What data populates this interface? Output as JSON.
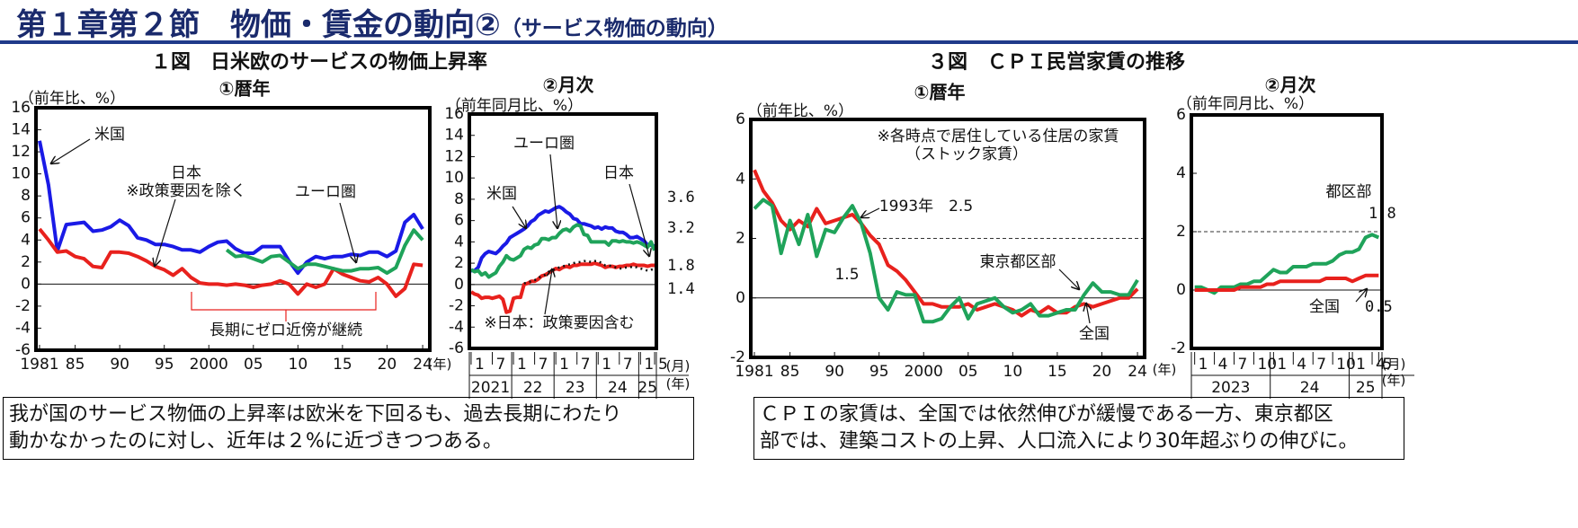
{
  "header": {
    "title": "第１章第２節　物価・賃金の動向②",
    "subtitle": "（サービス物価の動向）"
  },
  "figure_titles": [
    "１図　日米欧のサービスの物価上昇率",
    "３図　ＣＰＩ民営家賃の推移"
  ],
  "notes": [
    [
      "我が国のサービス物価の上昇率は欧米を下回るも、過去長期にわたり",
      "動かなかったのに対し、近年は２%に近づきつつある。"
    ],
    [
      "ＣＰＩの家賃は、全国では依然伸びが緩慢である一方、東京都区",
      "部では、建築コストの上昇、人口流入により30年超ぶりの伸びに。"
    ]
  ],
  "chart_data": [
    {
      "type": "line",
      "title": "①暦年",
      "y_label": "（前年比、%）",
      "x_unit": "(年)",
      "x": [
        1981,
        1982,
        1983,
        1984,
        1985,
        1986,
        1987,
        1988,
        1989,
        1990,
        1991,
        1992,
        1993,
        1994,
        1995,
        1996,
        1997,
        1998,
        1999,
        2000,
        2001,
        2002,
        2003,
        2004,
        2005,
        2006,
        2007,
        2008,
        2009,
        2010,
        2011,
        2012,
        2013,
        2014,
        2015,
        2016,
        2017,
        2018,
        2019,
        2020,
        2021,
        2022,
        2023,
        2024
      ],
      "xlim": [
        1980.6,
        2024.8
      ],
      "xticks": [
        1981,
        {
          "value": 1985,
          "label": "85"
        },
        {
          "value": 1990,
          "label": "90"
        },
        {
          "value": 1995,
          "label": "95"
        },
        2000,
        {
          "value": 2005,
          "label": "05"
        },
        {
          "value": 2010,
          "label": "10"
        },
        {
          "value": 2015,
          "label": "15"
        },
        {
          "value": 2020,
          "label": "20"
        },
        {
          "value": 2024,
          "label": "24"
        }
      ],
      "ylim": [
        -6,
        16
      ],
      "yticks": [
        -6,
        -4,
        -2,
        0,
        2,
        4,
        6,
        8,
        10,
        12,
        14,
        16
      ],
      "series": [
        {
          "name": "米国",
          "color": "#1a1ae6",
          "values": [
            13.0,
            9.0,
            3.0,
            5.4,
            5.5,
            5.6,
            4.8,
            4.9,
            5.2,
            5.8,
            5.3,
            4.2,
            4.0,
            3.6,
            3.6,
            3.4,
            3.1,
            3.1,
            2.9,
            3.4,
            3.8,
            3.9,
            3.2,
            2.8,
            2.8,
            3.4,
            3.4,
            3.4,
            2.1,
            1.0,
            2.0,
            2.5,
            2.3,
            2.5,
            2.5,
            2.7,
            2.6,
            2.9,
            2.9,
            2.5,
            3.0,
            5.6,
            6.3,
            5.0
          ]
        },
        {
          "name": "日本",
          "color": "#e8211d",
          "values": [
            5.0,
            4.0,
            2.9,
            3.0,
            2.5,
            2.3,
            1.6,
            1.5,
            2.9,
            2.9,
            2.8,
            2.5,
            2.1,
            1.6,
            1.3,
            0.8,
            1.4,
            0.6,
            0.1,
            0.0,
            0.0,
            -0.1,
            0.0,
            -0.1,
            -0.3,
            -0.1,
            0.0,
            0.3,
            0.0,
            -0.9,
            0.0,
            -0.3,
            0.0,
            1.4,
            0.9,
            0.6,
            0.3,
            0.2,
            0.6,
            0.0,
            -1.1,
            -0.4,
            1.8,
            1.7
          ]
        },
        {
          "name": "ユーロ圏",
          "color": "#1fa35a",
          "values": [
            null,
            null,
            null,
            null,
            null,
            null,
            null,
            null,
            null,
            null,
            null,
            null,
            null,
            null,
            null,
            null,
            null,
            null,
            null,
            null,
            null,
            3.1,
            2.5,
            2.6,
            2.3,
            2.0,
            2.5,
            2.6,
            2.0,
            1.4,
            1.8,
            1.8,
            1.6,
            1.4,
            1.2,
            1.2,
            1.4,
            1.4,
            1.5,
            1.0,
            1.5,
            3.5,
            4.9,
            4.0
          ]
        }
      ],
      "annotations": [
        {
          "text": "※政策要因を除く",
          "color": "#e8211d"
        },
        {
          "text": "長期にゼロ近傍が継続",
          "color": "#e8211d"
        }
      ]
    },
    {
      "type": "line",
      "title": "②月次",
      "y_label": "（前年同月比、%）",
      "x_unit": "(月)",
      "year_unit": "(年)",
      "categories": [
        "1",
        null,
        null,
        null,
        null,
        null,
        "7",
        null,
        null,
        null,
        null,
        null,
        "1",
        null,
        null,
        null,
        null,
        null,
        "7",
        null,
        null,
        null,
        null,
        null,
        "1",
        null,
        null,
        null,
        null,
        null,
        "7",
        null,
        null,
        null,
        null,
        null,
        "1",
        null,
        null,
        null,
        null,
        null,
        "7",
        null,
        null,
        null,
        null,
        null,
        "1",
        null,
        null,
        null,
        "5"
      ],
      "year_labels": [
        "2021",
        "22",
        "23",
        "24",
        "25"
      ],
      "ylim": [
        -6,
        16
      ],
      "yticks": [
        -6,
        -4,
        -2,
        0,
        2,
        4,
        6,
        8,
        10,
        12,
        14,
        16
      ],
      "series": [
        {
          "name": "米国",
          "color": "#1a1ae6",
          "values": [
            1.3,
            1.3,
            1.6,
            2.5,
            2.9,
            3.1,
            3.0,
            2.9,
            3.2,
            3.6,
            3.9,
            4.4,
            4.6,
            4.8,
            5.0,
            5.2,
            5.5,
            5.9,
            6.1,
            6.5,
            6.7,
            6.9,
            6.8,
            7.0,
            7.2,
            7.3,
            7.1,
            6.8,
            6.6,
            6.2,
            6.1,
            5.7,
            5.7,
            5.6,
            5.5,
            5.3,
            5.4,
            5.2,
            5.4,
            5.3,
            5.3,
            5.0,
            4.9,
            4.9,
            4.7,
            4.4,
            4.4,
            4.5,
            4.3,
            4.1,
            3.7,
            3.7,
            3.6
          ]
        },
        {
          "name": "ユーロ圏",
          "color": "#1fa35a",
          "values": [
            1.4,
            1.2,
            1.3,
            0.9,
            1.1,
            0.7,
            0.9,
            1.1,
            1.7,
            2.1,
            2.7,
            2.4,
            2.3,
            2.5,
            2.7,
            3.3,
            3.5,
            3.4,
            3.7,
            3.8,
            4.3,
            4.3,
            4.2,
            4.4,
            4.4,
            4.8,
            5.1,
            5.2,
            5.0,
            5.4,
            5.6,
            5.5,
            4.7,
            4.6,
            4.0,
            4.0,
            4.0,
            4.0,
            4.0,
            3.7,
            4.1,
            4.1,
            4.0,
            4.1,
            4.0,
            4.0,
            3.9,
            4.0,
            3.9,
            3.7,
            3.5,
            4.0,
            3.2
          ]
        },
        {
          "name": "日本",
          "color": "#e8211d",
          "values": [
            -0.7,
            -0.9,
            -1.0,
            -1.3,
            -1.2,
            -1.2,
            -1.3,
            -1.2,
            -1.1,
            -1.4,
            -2.6,
            -2.5,
            -1.3,
            -1.2,
            -1.2,
            0.0,
            0.1,
            0.3,
            0.3,
            0.5,
            0.8,
            0.9,
            1.1,
            1.3,
            1.5,
            1.4,
            1.6,
            1.7,
            1.6,
            1.8,
            1.8,
            1.9,
            1.9,
            1.9,
            1.9,
            2.0,
            1.9,
            1.8,
            1.6,
            1.7,
            1.7,
            1.6,
            1.7,
            1.7,
            1.8,
            1.8,
            1.9,
            1.8,
            1.8,
            1.8,
            1.7,
            1.8,
            1.8
          ]
        },
        {
          "name": "※日本：政策要因含む",
          "color": "#111111",
          "dashed": true,
          "values": [
            null,
            null,
            null,
            null,
            null,
            null,
            null,
            null,
            null,
            null,
            null,
            null,
            null,
            null,
            null,
            0.1,
            0.2,
            0.3,
            0.4,
            0.6,
            0.8,
            0.9,
            1.2,
            1.3,
            1.5,
            1.6,
            1.7,
            1.8,
            1.9,
            2.0,
            2.1,
            2.1,
            2.2,
            2.2,
            2.1,
            2.2,
            2.2,
            2.0,
            1.8,
            1.8,
            1.7,
            1.6,
            1.5,
            1.5,
            1.6,
            1.6,
            1.7,
            1.6,
            1.5,
            1.4,
            1.3,
            1.4,
            1.4
          ]
        }
      ]
    },
    {
      "type": "line",
      "title": "①暦年",
      "y_label": "（前年比、%）",
      "x_unit": "(年)",
      "x": [
        1981,
        1982,
        1983,
        1984,
        1985,
        1986,
        1987,
        1988,
        1989,
        1990,
        1991,
        1992,
        1993,
        1994,
        1995,
        1996,
        1997,
        1998,
        1999,
        2000,
        2001,
        2002,
        2003,
        2004,
        2005,
        2006,
        2007,
        2008,
        2009,
        2010,
        2011,
        2012,
        2013,
        2014,
        2015,
        2016,
        2017,
        2018,
        2019,
        2020,
        2021,
        2022,
        2023,
        2024
      ],
      "xlim": [
        1980.6,
        2024.8
      ],
      "xticks": [
        1981,
        {
          "value": 1985,
          "label": "85"
        },
        {
          "value": 1990,
          "label": "90"
        },
        {
          "value": 1995,
          "label": "95"
        },
        2000,
        {
          "value": 2005,
          "label": "05"
        },
        {
          "value": 2010,
          "label": "10"
        },
        {
          "value": 2015,
          "label": "15"
        },
        {
          "value": 2020,
          "label": "20"
        },
        {
          "value": 2024,
          "label": "24"
        }
      ],
      "ylim": [
        -2,
        6
      ],
      "yticks": [
        -2,
        0,
        2,
        4,
        6
      ],
      "reference_line": 2.0,
      "series": [
        {
          "name": "全国",
          "color": "#e8211d",
          "values": [
            4.3,
            3.6,
            3.2,
            2.6,
            2.3,
            2.6,
            2.4,
            3.0,
            2.5,
            2.6,
            2.7,
            2.8,
            2.5,
            2.1,
            1.8,
            1.1,
            0.9,
            0.6,
            0.2,
            -0.2,
            -0.2,
            -0.3,
            -0.3,
            -0.3,
            -0.2,
            -0.4,
            -0.3,
            -0.2,
            -0.3,
            -0.4,
            -0.6,
            -0.4,
            -0.5,
            -0.3,
            -0.5,
            -0.5,
            -0.3,
            -0.2,
            -0.3,
            -0.2,
            -0.1,
            0.0,
            0.0,
            0.3
          ]
        },
        {
          "name": "東京都区部",
          "color": "#1fa35a",
          "values": [
            3.0,
            3.3,
            3.1,
            1.5,
            2.6,
            1.8,
            2.8,
            1.4,
            2.3,
            2.2,
            2.7,
            3.1,
            2.5,
            1.5,
            0.0,
            -0.4,
            0.2,
            0.1,
            0.1,
            -0.8,
            -0.8,
            -0.7,
            -0.3,
            0.0,
            -0.7,
            -0.2,
            -0.1,
            0.0,
            -0.3,
            -0.5,
            -0.4,
            -0.2,
            -0.6,
            -0.6,
            -0.5,
            -0.4,
            -0.4,
            0.1,
            0.5,
            0.2,
            0.2,
            0.1,
            0.1,
            0.6
          ]
        }
      ],
      "annotations": [
        {
          "text": "※各時点で居住している住居の家賃",
          "color": "#111111"
        },
        {
          "text": "（ストック家賃）",
          "color": "#111111"
        },
        {
          "text": "1993年　2.5",
          "color": "#1fa35a"
        },
        {
          "text": "1.5",
          "color": "#1fa35a"
        }
      ]
    },
    {
      "type": "line",
      "title": "②月次",
      "y_label": "（前年同月比、%）",
      "x_unit": "(月)",
      "year_unit": "(年)",
      "categories": [
        "1",
        null,
        null,
        "4",
        null,
        null,
        "7",
        null,
        null,
        "10",
        null,
        null,
        "1",
        null,
        null,
        "4",
        null,
        null,
        "7",
        null,
        null,
        "10",
        null,
        null,
        "1",
        null,
        null,
        "4",
        "5"
      ],
      "year_labels": [
        "2023",
        "24",
        "25"
      ],
      "ylim": [
        -2,
        6
      ],
      "yticks": [
        -2,
        0,
        2,
        4,
        6
      ],
      "reference_line": 2.0,
      "series": [
        {
          "name": "都区部",
          "color": "#1fa35a",
          "values": [
            0.1,
            0.1,
            0.0,
            -0.1,
            0.1,
            0.1,
            0.1,
            0.2,
            0.2,
            0.3,
            0.3,
            0.5,
            0.7,
            0.6,
            0.6,
            0.8,
            0.8,
            0.8,
            0.9,
            0.9,
            0.9,
            1.0,
            1.2,
            1.3,
            1.3,
            1.4,
            1.8,
            1.9,
            1.8
          ]
        },
        {
          "name": "全国",
          "color": "#e8211d",
          "values": [
            0.0,
            0.0,
            0.0,
            0.0,
            0.0,
            0.0,
            0.0,
            0.1,
            0.1,
            0.1,
            0.1,
            0.2,
            0.2,
            0.3,
            0.3,
            0.3,
            0.3,
            0.3,
            0.3,
            0.3,
            0.4,
            0.4,
            0.4,
            0.4,
            0.3,
            0.4,
            0.5,
            0.5,
            0.5
          ]
        }
      ]
    }
  ]
}
